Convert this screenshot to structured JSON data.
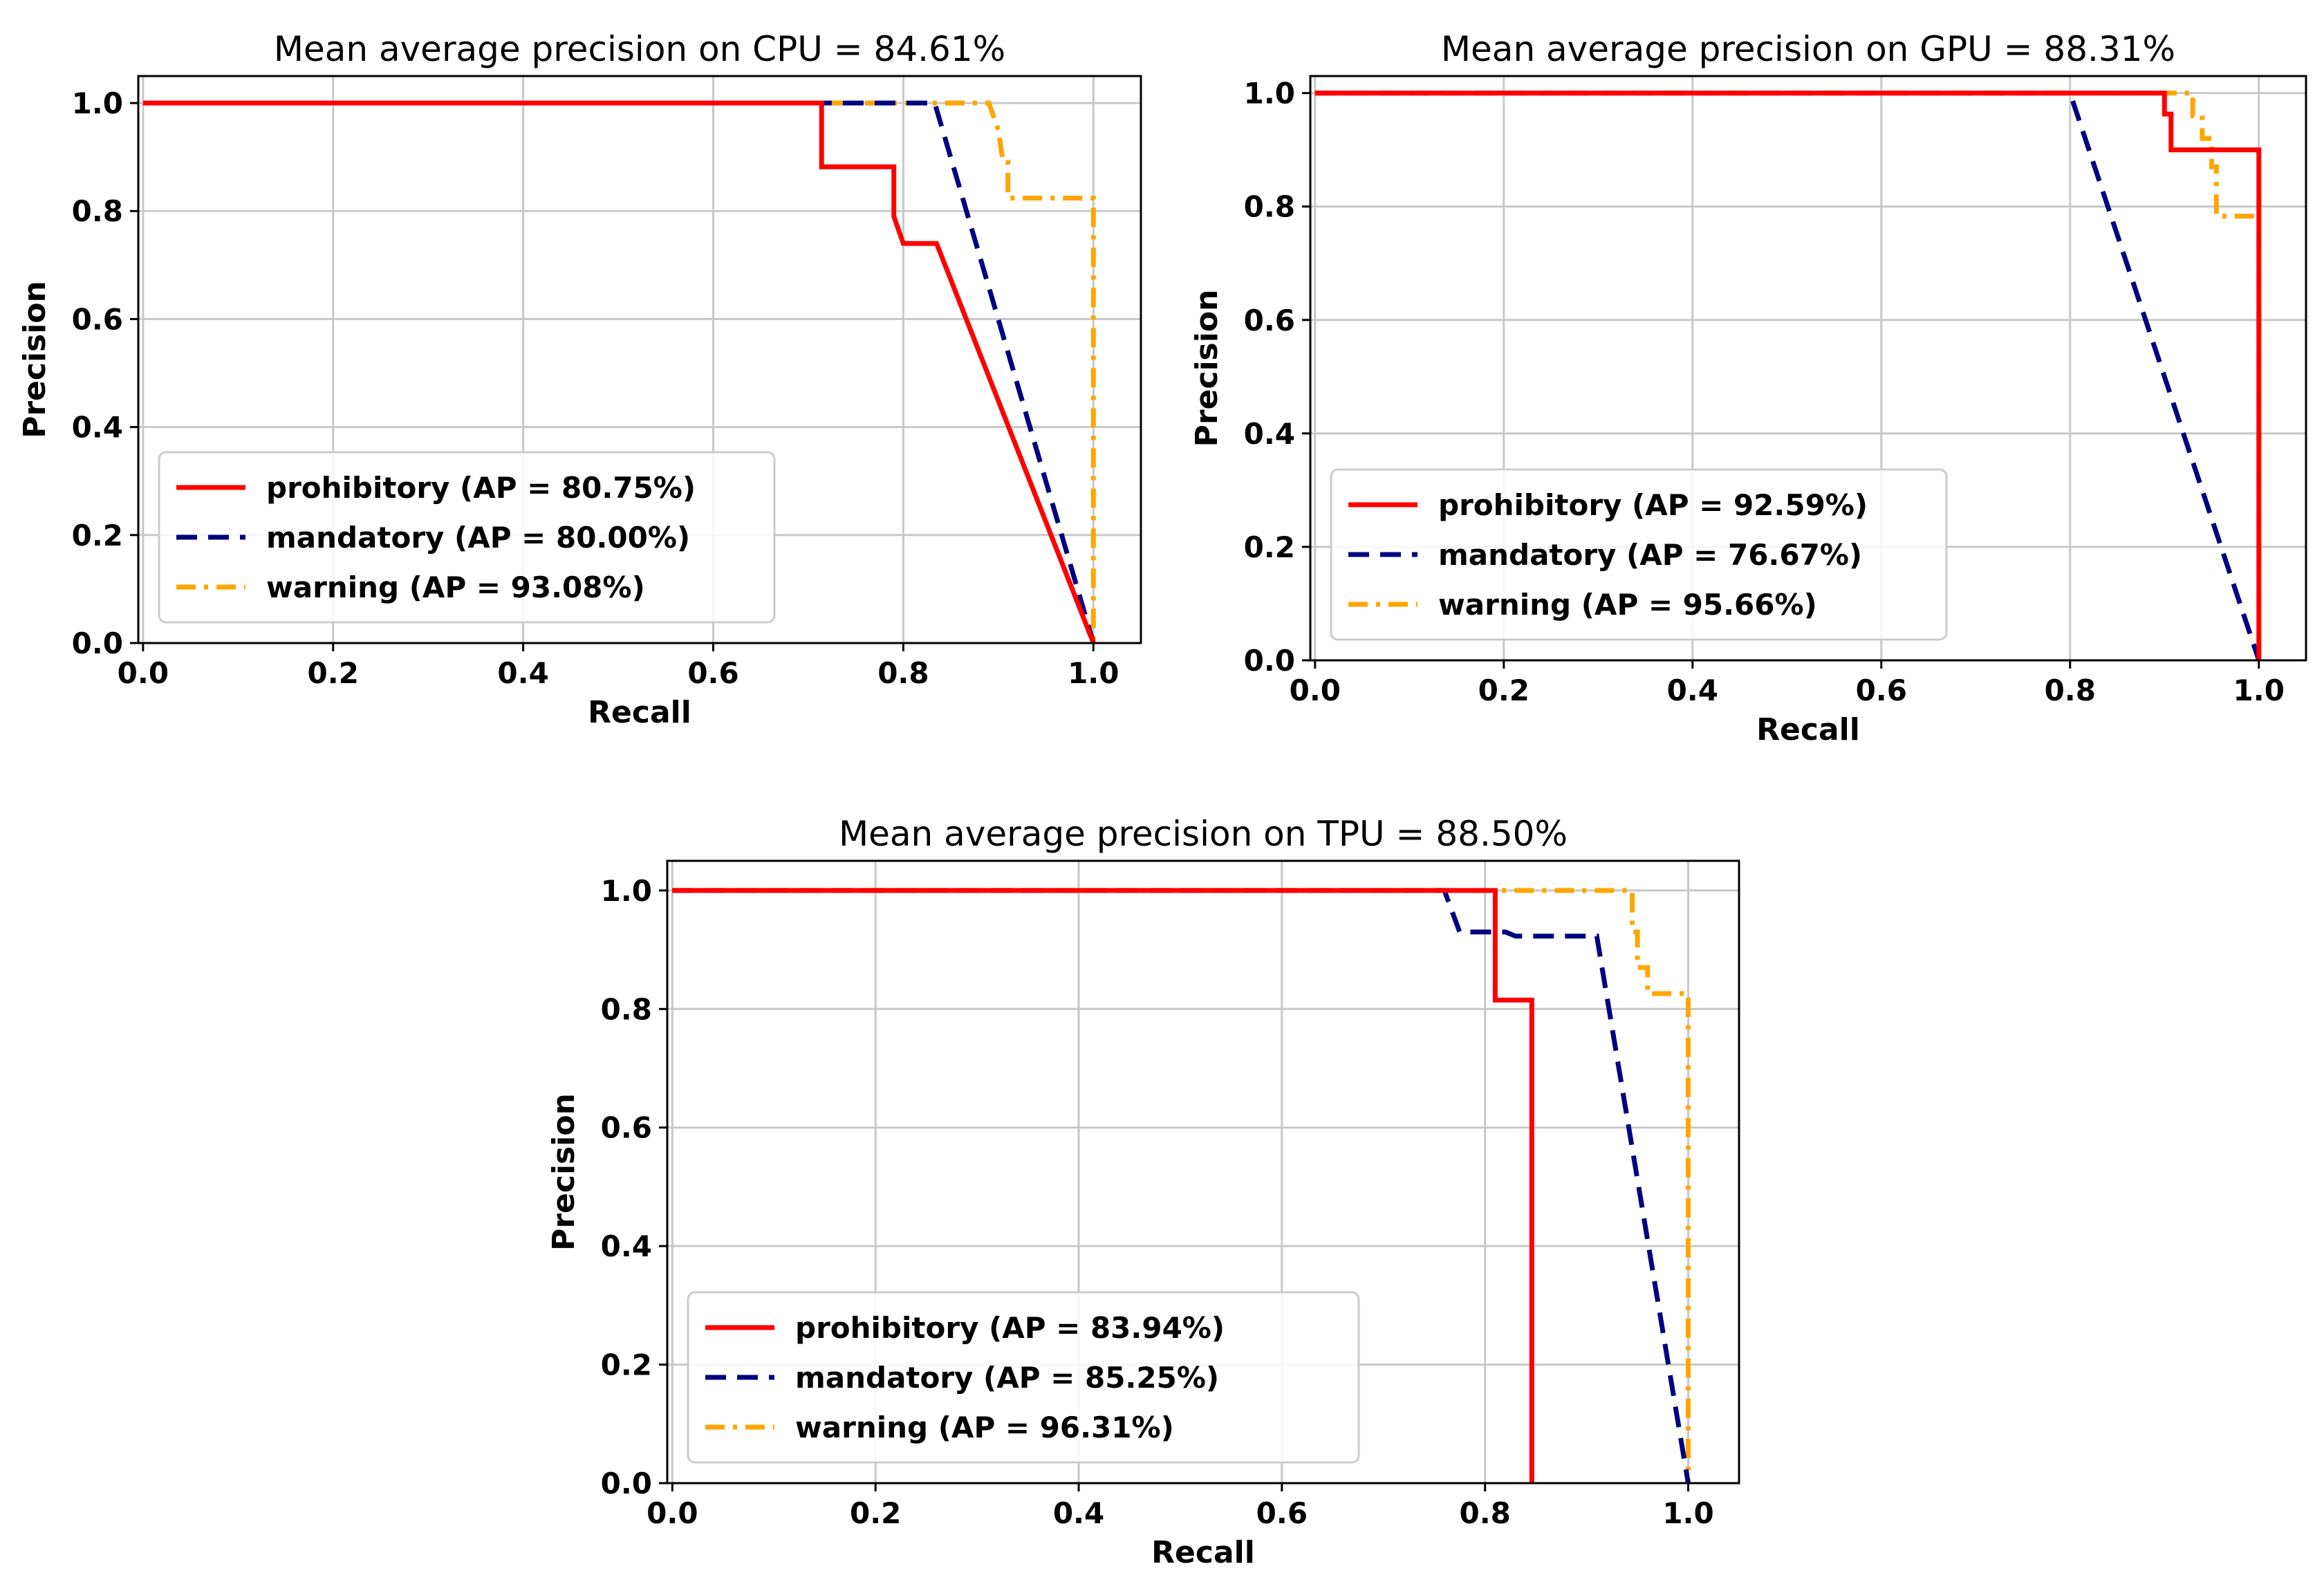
{
  "chart_data": [
    {
      "type": "line",
      "title": "Mean average precision on CPU = 84.61%",
      "xlabel": "Recall",
      "ylabel": "Precision",
      "xlim": [
        0.0,
        1.0
      ],
      "ylim": [
        0.0,
        1.0
      ],
      "xticks": [
        "0.0",
        "0.2",
        "0.4",
        "0.6",
        "0.8",
        "1.0"
      ],
      "yticks": [
        "0.0",
        "0.2",
        "0.4",
        "0.6",
        "0.8",
        "1.0"
      ],
      "grid": true,
      "legend_position": "lower-left",
      "series": [
        {
          "name": "prohibitory (AP = 80.75%)",
          "color": "#ff0000",
          "style": "solid",
          "x": [
            0.0,
            0.714,
            0.714,
            0.79,
            0.79,
            0.8,
            0.8,
            0.835,
            1.0
          ],
          "y": [
            1.0,
            1.0,
            0.882,
            0.882,
            0.79,
            0.74,
            0.74,
            0.74,
            0.0
          ]
        },
        {
          "name": "mandatory (AP = 80.00%)",
          "color": "#000080",
          "style": "dashed",
          "x": [
            0.0,
            0.833,
            1.0
          ],
          "y": [
            1.0,
            1.0,
            0.0
          ]
        },
        {
          "name": "warning (AP = 93.08%)",
          "color": "#ffa500",
          "style": "dashdot",
          "x": [
            0.0,
            0.89,
            0.9,
            0.905,
            0.91,
            0.91,
            1.0,
            1.0
          ],
          "y": [
            1.0,
            1.0,
            0.95,
            0.89,
            0.89,
            0.824,
            0.824,
            0.0
          ]
        }
      ]
    },
    {
      "type": "line",
      "title": "Mean average precision on GPU = 88.31%",
      "xlabel": "Recall",
      "ylabel": "Precision",
      "xlim": [
        0.0,
        1.0
      ],
      "ylim": [
        0.0,
        1.0
      ],
      "xticks": [
        "0.0",
        "0.2",
        "0.4",
        "0.6",
        "0.8",
        "1.0"
      ],
      "yticks": [
        "0.0",
        "0.2",
        "0.4",
        "0.6",
        "0.8",
        "1.0"
      ],
      "grid": true,
      "legend_position": "lower-left",
      "series": [
        {
          "name": "prohibitory (AP = 92.59%)",
          "color": "#ff0000",
          "style": "solid",
          "x": [
            0.0,
            0.9,
            0.9,
            0.907,
            0.907,
            1.0,
            1.0
          ],
          "y": [
            1.0,
            1.0,
            0.963,
            0.963,
            0.9,
            0.9,
            0.0
          ]
        },
        {
          "name": "mandatory (AP = 76.67%)",
          "color": "#000080",
          "style": "dashed",
          "x": [
            0.0,
            0.8,
            1.0
          ],
          "y": [
            1.0,
            1.0,
            0.0
          ]
        },
        {
          "name": "warning (AP = 95.66%)",
          "color": "#ffa500",
          "style": "dashdot",
          "x": [
            0.0,
            0.93,
            0.93,
            0.94,
            0.94,
            0.95,
            0.95,
            0.955,
            0.955,
            1.0,
            1.0
          ],
          "y": [
            1.0,
            1.0,
            0.96,
            0.96,
            0.92,
            0.92,
            0.87,
            0.87,
            0.783,
            0.783,
            0.0
          ]
        }
      ]
    },
    {
      "type": "line",
      "title": "Mean average precision on TPU = 88.50%",
      "xlabel": "Recall",
      "ylabel": "Precision",
      "xlim": [
        0.0,
        1.0
      ],
      "ylim": [
        0.0,
        1.0
      ],
      "xticks": [
        "0.0",
        "0.2",
        "0.4",
        "0.6",
        "0.8",
        "1.0"
      ],
      "yticks": [
        "0.0",
        "0.2",
        "0.4",
        "0.6",
        "0.8",
        "1.0"
      ],
      "grid": true,
      "legend_position": "lower-left",
      "series": [
        {
          "name": "prohibitory (AP = 83.94%)",
          "color": "#ff0000",
          "style": "solid",
          "x": [
            0.0,
            0.81,
            0.81,
            0.846,
            0.846
          ],
          "y": [
            1.0,
            1.0,
            0.815,
            0.815,
            0.0
          ]
        },
        {
          "name": "mandatory (AP = 85.25%)",
          "color": "#000080",
          "style": "dashed",
          "x": [
            0.0,
            0.76,
            0.775,
            0.82,
            0.83,
            0.91,
            1.0
          ],
          "y": [
            1.0,
            1.0,
            0.93,
            0.93,
            0.923,
            0.923,
            0.0
          ]
        },
        {
          "name": "warning (AP = 96.31%)",
          "color": "#ffa500",
          "style": "dashdot",
          "x": [
            0.0,
            0.945,
            0.945,
            0.95,
            0.95,
            0.96,
            0.96,
            1.0,
            1.0
          ],
          "y": [
            1.0,
            1.0,
            0.93,
            0.93,
            0.87,
            0.87,
            0.826,
            0.826,
            0.0
          ]
        }
      ]
    }
  ]
}
